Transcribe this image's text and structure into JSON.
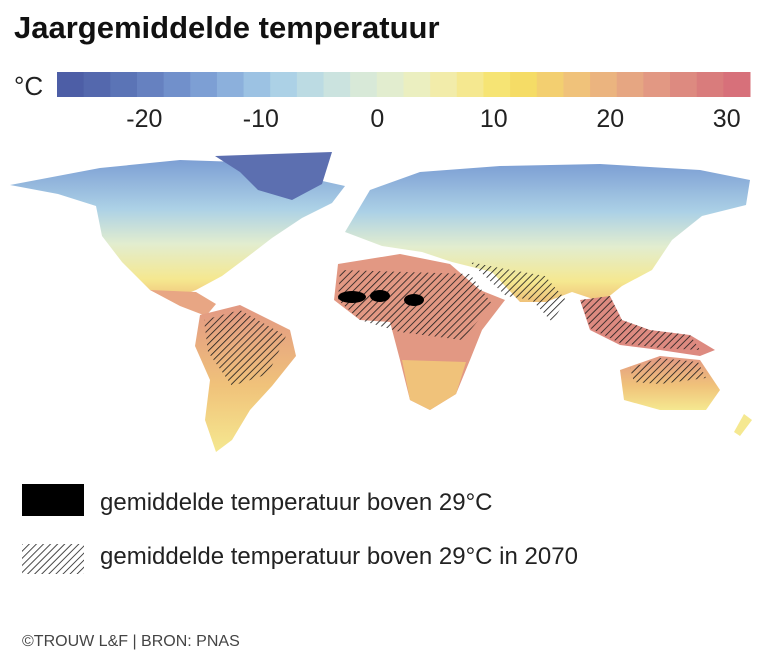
{
  "header": {
    "title": "Jaargemiddelde temperatuur"
  },
  "colorbar": {
    "unit": "°C",
    "range": [
      -27.5,
      32
    ],
    "ticks": [
      -20,
      -10,
      0,
      10,
      20,
      30
    ],
    "colors": [
      "#4d5ea6",
      "#5468ad",
      "#5b74b6",
      "#6681c0",
      "#7190cb",
      "#7d9fd4",
      "#8cb0dc",
      "#9cc2e3",
      "#acd1e6",
      "#bcdbe3",
      "#cbe3df",
      "#d8e9d8",
      "#e2edcf",
      "#ebefc0",
      "#f2ecaa",
      "#f5e890",
      "#f6e474",
      "#f5dc66",
      "#f3cf70",
      "#f0c27a",
      "#ebb47f",
      "#e6a682",
      "#e29883",
      "#dd8a80",
      "#d97c7c",
      "#d7707a"
    ]
  },
  "legend": {
    "items": [
      {
        "label": "gemiddelde temperatuur boven 29°C"
      },
      {
        "label": "gemiddelde temperatuur boven 29°C in 2070"
      }
    ]
  },
  "footer": {
    "credit": "©TROUW L&F | BRON: PNAS"
  }
}
